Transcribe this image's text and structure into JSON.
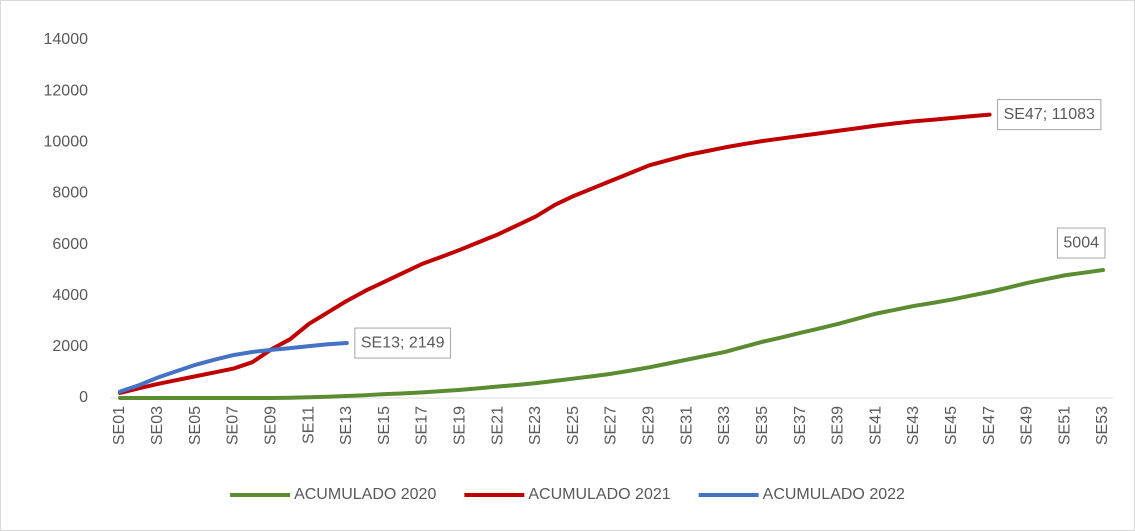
{
  "chart_data": {
    "type": "line",
    "categories": [
      "SE01",
      null,
      "SE03",
      null,
      "SE05",
      null,
      "SE07",
      null,
      "SE09",
      null,
      "SE11",
      null,
      "SE13",
      null,
      "SE15",
      null,
      "SE17",
      null,
      "SE19",
      null,
      "SE21",
      null,
      "SE23",
      null,
      "SE25",
      null,
      "SE27",
      null,
      "SE29",
      null,
      "SE31",
      null,
      "SE33",
      null,
      "SE35",
      null,
      "SE37",
      null,
      "SE39",
      null,
      "SE41",
      null,
      "SE43",
      null,
      "SE45",
      null,
      "SE47",
      null,
      "SE49",
      null,
      "SE51",
      null,
      "SE53"
    ],
    "series": [
      {
        "name": "ACUMULADO 2020",
        "color": "#5b8c32",
        "values": [
          0,
          0,
          0,
          0,
          0,
          0,
          0,
          0,
          0,
          10,
          30,
          50,
          80,
          110,
          150,
          180,
          220,
          270,
          320,
          380,
          450,
          510,
          580,
          670,
          760,
          850,
          950,
          1070,
          1200,
          1350,
          1500,
          1650,
          1800,
          2000,
          2200,
          2370,
          2550,
          2720,
          2900,
          3100,
          3300,
          3450,
          3600,
          3720,
          3850,
          4000,
          4150,
          4320,
          4500,
          4650,
          4800,
          4900,
          5004
        ],
        "value_labels": [
          null,
          null,
          null,
          null,
          null,
          null,
          null,
          null,
          null,
          null,
          null,
          null,
          null,
          null,
          null,
          null,
          null,
          null,
          null,
          null,
          null,
          null,
          null,
          null,
          null,
          null,
          null,
          null,
          null,
          null,
          null,
          null,
          null,
          null,
          null,
          null,
          null,
          null,
          null,
          null,
          null,
          null,
          null,
          null,
          null,
          null,
          null,
          null,
          null,
          null,
          null,
          null,
          "5004"
        ]
      },
      {
        "name": "ACUMULADO 2021",
        "color": "#c00000",
        "values": [
          200,
          380,
          550,
          700,
          850,
          1000,
          1150,
          1400,
          1900,
          2300,
          2900,
          3350,
          3800,
          4200,
          4550,
          4900,
          5250,
          5520,
          5800,
          6100,
          6400,
          6750,
          7100,
          7550,
          7900,
          8200,
          8500,
          8800,
          9100,
          9300,
          9500,
          9650,
          9800,
          9930,
          10050,
          10150,
          10250,
          10350,
          10450,
          10550,
          10650,
          10740,
          10820,
          10880,
          10950,
          11020,
          11083,
          null,
          null,
          null,
          null,
          null,
          null
        ],
        "value_labels": [
          null,
          null,
          null,
          null,
          null,
          null,
          null,
          null,
          null,
          null,
          null,
          null,
          null,
          null,
          null,
          null,
          null,
          null,
          null,
          null,
          null,
          null,
          null,
          null,
          null,
          null,
          null,
          null,
          null,
          null,
          null,
          null,
          null,
          null,
          null,
          null,
          null,
          null,
          null,
          null,
          null,
          null,
          null,
          null,
          null,
          null,
          "SE47; 11083",
          null,
          null,
          null,
          null,
          null,
          null
        ]
      },
      {
        "name": "ACUMULADO 2022",
        "color": "#4472c4",
        "values": [
          250,
          500,
          800,
          1050,
          1300,
          1500,
          1680,
          1800,
          1880,
          1950,
          2030,
          2100,
          2149,
          null,
          null,
          null,
          null,
          null,
          null,
          null,
          null,
          null,
          null,
          null,
          null,
          null,
          null,
          null,
          null,
          null,
          null,
          null,
          null,
          null,
          null,
          null,
          null,
          null,
          null,
          null,
          null,
          null,
          null,
          null,
          null,
          null,
          null,
          null,
          null,
          null,
          null,
          null,
          null
        ],
        "value_labels": [
          null,
          null,
          null,
          null,
          null,
          null,
          null,
          null,
          null,
          null,
          null,
          null,
          "SE13; 2149",
          null,
          null,
          null,
          null,
          null,
          null,
          null,
          null,
          null,
          null,
          null,
          null,
          null,
          null,
          null,
          null,
          null,
          null,
          null,
          null,
          null,
          null,
          null,
          null,
          null,
          null,
          null,
          null,
          null,
          null,
          null,
          null,
          null,
          null,
          null,
          null,
          null,
          null,
          null,
          null
        ]
      }
    ],
    "ylim": [
      0,
      14000
    ],
    "yticks": [
      0,
      2000,
      4000,
      6000,
      8000,
      10000,
      12000,
      14000
    ],
    "grid": false,
    "legend": "bottom"
  }
}
